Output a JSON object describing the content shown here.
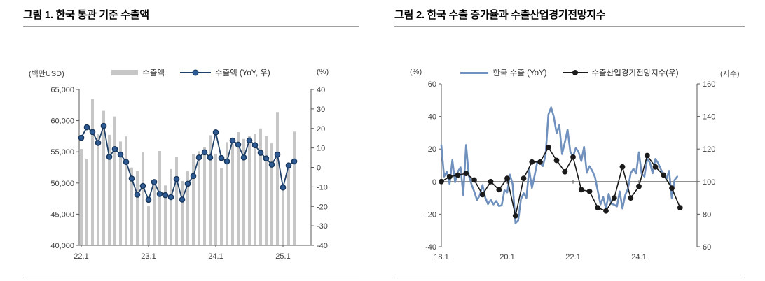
{
  "figure1": {
    "title": "그림 1. 한국 통관 기준 수출액",
    "unit_left": "(백만USD)",
    "unit_right": "(%)",
    "legend": {
      "bars": "수출액",
      "line": "수출액 (YoY, 우)"
    }
  },
  "figure2": {
    "title": "그림 2. 한국 수출 증가율과 수출산업경기전망지수",
    "unit_left": "(%)",
    "unit_right": "(지수)",
    "legend": {
      "line1": "한국 수출 (YoY)",
      "line2": "수출산업경기전망지수(우)"
    }
  },
  "style": {
    "axis_color": "#595959",
    "label_color": "#404040"
  },
  "chart_data": [
    {
      "type": "bar",
      "title": "그림 1. 한국 통관 기준 수출액",
      "x_ticks": {
        "labels": [
          "22.1",
          "23.1",
          "24.1",
          "25.1"
        ],
        "month_positions": [
          0,
          12,
          24,
          36
        ]
      },
      "y_left": {
        "unit": "(백만USD)",
        "min": 40000,
        "max": 65000,
        "ticks": [
          "65,000",
          "60,000",
          "55,000",
          "50,000",
          "45,000",
          "40,000"
        ]
      },
      "y_right": {
        "unit": "(%)",
        "min": -40,
        "max": 40,
        "ticks": [
          40,
          30,
          20,
          10,
          0,
          -10,
          -20,
          -30,
          -40
        ]
      },
      "series": [
        {
          "name": "수출액",
          "kind": "bar",
          "axis": "left",
          "frequency": "monthly",
          "color": "#c6c6c6",
          "values": [
            55460,
            53910,
            63480,
            57810,
            61570,
            57730,
            60670,
            56660,
            57470,
            52480,
            51910,
            54960,
            46270,
            50110,
            55130,
            49610,
            52240,
            54240,
            50330,
            51870,
            54660,
            55090,
            55780,
            57660,
            54700,
            52410,
            56550,
            56260,
            58150,
            57070,
            57490,
            57900,
            58750,
            57520,
            56350,
            61380,
            49120,
            52600,
            58240
          ]
        },
        {
          "name": "수출액 (YoY, 우)",
          "kind": "line-marker",
          "axis": "right",
          "frequency": "monthly",
          "color": "#1f4068",
          "marker_fill": "#2f5b95",
          "marker_stroke": "#16365c",
          "values": [
            15.2,
            20.6,
            18.2,
            12.6,
            21.3,
            5.4,
            9.4,
            6.6,
            2.8,
            -5.7,
            -14.0,
            -9.5,
            -16.6,
            -7.5,
            -13.6,
            -14.2,
            -15.2,
            -6.0,
            -16.5,
            -8.4,
            -4.4,
            5.1,
            7.8,
            5.1,
            18.0,
            4.8,
            3.1,
            13.8,
            11.7,
            5.1,
            13.9,
            11.4,
            7.5,
            4.6,
            1.4,
            6.6,
            -10.3,
            1.0,
            3.1
          ]
        }
      ]
    },
    {
      "type": "line",
      "title": "그림 2. 한국 수출 증가율과 수출산업경기전망지수",
      "x_ticks": {
        "labels": [
          "18.1",
          "20.1",
          "22.1",
          "24.1"
        ],
        "month_positions": [
          0,
          24,
          48,
          72
        ]
      },
      "y_left": {
        "unit": "(%)",
        "min": -40,
        "max": 60,
        "ticks": [
          60,
          40,
          20,
          0,
          -20,
          -40
        ]
      },
      "y_right": {
        "unit": "(지수)",
        "min": 60,
        "max": 160,
        "ticks": [
          160,
          140,
          120,
          100,
          80,
          60
        ]
      },
      "zero_line": true,
      "series": [
        {
          "name": "한국 수출 (YoY)",
          "kind": "line",
          "axis": "left",
          "frequency": "monthly",
          "color": "#7090bd",
          "values": [
            22.3,
            3.1,
            6.0,
            -1.5,
            13.2,
            -0.4,
            6.1,
            8.7,
            -8.2,
            22.5,
            3.6,
            -1.7,
            -6.2,
            -11.3,
            -8.4,
            -2.1,
            -9.8,
            -13.8,
            -11.1,
            -14.0,
            -11.9,
            -15.0,
            -14.5,
            -5.3,
            -6.6,
            4.3,
            -1.7,
            -25.6,
            -23.8,
            -10.8,
            -7.1,
            -10.1,
            7.6,
            -3.9,
            3.9,
            12.4,
            11.4,
            9.5,
            16.5,
            41.2,
            45.6,
            39.7,
            29.6,
            34.8,
            16.9,
            24.2,
            31.9,
            18.3,
            15.2,
            20.6,
            18.2,
            12.6,
            21.3,
            5.4,
            9.4,
            6.6,
            2.8,
            -5.7,
            -14.0,
            -9.5,
            -16.6,
            -7.5,
            -13.6,
            -14.2,
            -15.2,
            -6.0,
            -16.5,
            -8.4,
            -4.4,
            5.1,
            7.8,
            5.1,
            18.0,
            4.8,
            3.1,
            13.8,
            11.7,
            5.1,
            13.9,
            11.4,
            7.5,
            4.6,
            1.4,
            6.6,
            -10.3,
            1.0,
            3.1
          ]
        },
        {
          "name": "수출산업경기전망지수(우)",
          "kind": "line-marker",
          "axis": "right",
          "frequency": "quarterly",
          "color": "#1a1a1a",
          "marker_fill": "#1a1a1a",
          "marker_stroke": "#1a1a1a",
          "values": [
            100,
            103,
            104,
            105,
            101,
            92,
            100,
            95,
            102,
            79,
            102,
            112,
            112,
            121,
            113,
            106,
            115,
            95,
            94,
            84,
            82,
            90,
            109,
            90,
            97,
            116,
            109,
            104,
            96,
            84
          ]
        }
      ]
    }
  ]
}
